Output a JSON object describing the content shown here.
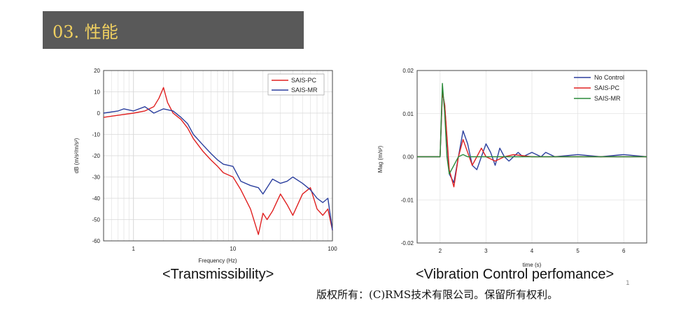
{
  "slide": {
    "title": "03. 性能",
    "caption_left": "<Transmissibility>",
    "caption_right": "<Vibration Control perfomance>",
    "copyright": "版权所有：(C)RMS技术有限公司。保留所有权利。",
    "page_number": "1"
  },
  "colors": {
    "red": "#e02020",
    "blue": "#2b3f9e",
    "green": "#2a8a3a",
    "title_bg": "#595959",
    "title_fg": "#f0d060"
  },
  "chart_data": [
    {
      "type": "line",
      "xscale": "log",
      "xlabel": "Frequency (Hz)",
      "ylabel": "dB (m/s²/m/s²)",
      "xlim": [
        0.5,
        100
      ],
      "ylim": [
        -60,
        20
      ],
      "xticks": [
        1,
        10,
        100
      ],
      "yticks": [
        20,
        10,
        0,
        -10,
        -20,
        -30,
        -40,
        -50,
        -60
      ],
      "grid": true,
      "legend_position": "top-right",
      "series": [
        {
          "name": "SAIS-PC",
          "color": "#e02020",
          "x": [
            0.5,
            0.7,
            1.0,
            1.3,
            1.6,
            1.8,
            2.0,
            2.2,
            2.5,
            3.0,
            3.5,
            4.0,
            5.0,
            6.0,
            7.0,
            8.0,
            10,
            12,
            15,
            18,
            20,
            22,
            25,
            30,
            35,
            40,
            50,
            60,
            70,
            80,
            90,
            100
          ],
          "y": [
            -2,
            -1,
            0,
            1,
            3,
            7,
            12,
            5,
            0,
            -3,
            -7,
            -12,
            -18,
            -22,
            -25,
            -28,
            -30,
            -36,
            -45,
            -57,
            -47,
            -50,
            -46,
            -38,
            -43,
            -48,
            -38,
            -35,
            -45,
            -48,
            -45,
            -55
          ]
        },
        {
          "name": "SAIS-MR",
          "color": "#2b3f9e",
          "x": [
            0.5,
            0.7,
            0.8,
            1.0,
            1.3,
            1.6,
            2.0,
            2.5,
            3.0,
            3.5,
            4.0,
            5.0,
            6.0,
            7.0,
            8.0,
            10,
            12,
            15,
            18,
            20,
            25,
            30,
            35,
            40,
            50,
            60,
            70,
            80,
            90,
            100
          ],
          "y": [
            0,
            1,
            2,
            1,
            3,
            0,
            2,
            1,
            -2,
            -5,
            -10,
            -15,
            -19,
            -22,
            -24,
            -25,
            -32,
            -34,
            -35,
            -38,
            -31,
            -33,
            -32,
            -30,
            -33,
            -36,
            -40,
            -42,
            -40,
            -55
          ]
        }
      ]
    },
    {
      "type": "line",
      "xlabel": "time (s)",
      "ylabel": "Mag (m/s²)",
      "xlim": [
        1.5,
        6.5
      ],
      "ylim": [
        -0.02,
        0.02
      ],
      "xticks": [
        2,
        3,
        4,
        5,
        6
      ],
      "yticks": [
        "0.02",
        "0.01",
        "0.00",
        "-0.01",
        "-0.02"
      ],
      "grid": true,
      "legend_position": "top-right",
      "series": [
        {
          "name": "No Control",
          "color": "#2b3f9e",
          "x": [
            1.5,
            1.9,
            2.0,
            2.05,
            2.1,
            2.2,
            2.3,
            2.4,
            2.5,
            2.6,
            2.7,
            2.8,
            2.9,
            3.0,
            3.1,
            3.2,
            3.3,
            3.4,
            3.5,
            3.7,
            3.8,
            4.0,
            4.2,
            4.3,
            4.5,
            5.0,
            5.5,
            6.0,
            6.5
          ],
          "y": [
            0,
            0,
            0,
            0.015,
            0.012,
            -0.004,
            -0.006,
            0.0,
            0.006,
            0.003,
            -0.002,
            -0.003,
            0.0,
            0.003,
            0.001,
            -0.002,
            0.002,
            0.0,
            -0.001,
            0.001,
            0.0,
            0.001,
            0.0,
            0.001,
            0.0,
            0.0005,
            0.0,
            0.0005,
            0.0
          ]
        },
        {
          "name": "SAIS-PC",
          "color": "#e02020",
          "x": [
            1.5,
            1.9,
            2.0,
            2.05,
            2.1,
            2.2,
            2.3,
            2.4,
            2.5,
            2.6,
            2.7,
            2.8,
            2.9,
            3.0,
            3.2,
            3.4,
            3.6,
            4.0,
            4.5,
            5.0,
            5.5,
            6.0,
            6.5
          ],
          "y": [
            0,
            0,
            0,
            0.015,
            0.012,
            -0.003,
            -0.007,
            0.0,
            0.004,
            0.001,
            -0.002,
            0.0,
            0.002,
            0.0,
            -0.001,
            0.0,
            0.0005,
            0.0,
            0.0,
            0.0,
            0.0,
            0.0,
            0.0
          ]
        },
        {
          "name": "SAIS-MR",
          "color": "#2a8a3a",
          "x": [
            1.5,
            1.9,
            2.0,
            2.05,
            2.1,
            2.15,
            2.2,
            2.3,
            2.4,
            2.5,
            2.6,
            2.7,
            3.0,
            3.5,
            4.0,
            4.5,
            5.0,
            5.5,
            6.0,
            6.5
          ],
          "y": [
            0,
            0,
            0,
            0.017,
            0.01,
            0.0,
            -0.004,
            -0.002,
            0.0,
            0.0005,
            0.0,
            0.0,
            0.0,
            0.0,
            0.0,
            0.0,
            0.0,
            0.0,
            0.0,
            0.0
          ]
        }
      ]
    }
  ]
}
